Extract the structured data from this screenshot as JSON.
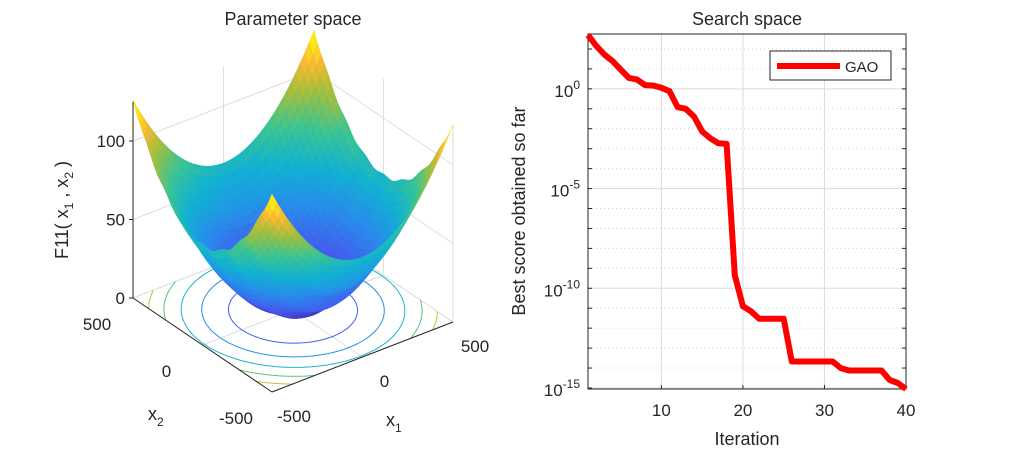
{
  "chart_data": [
    {
      "type": "surface",
      "title": "Parameter space",
      "function_name": "F11",
      "zlabel": "F11( x_1 , x_2 )",
      "xlabel": "x_1",
      "ylabel": "x_2",
      "x_range": [
        -500,
        500
      ],
      "y_range": [
        -500,
        500
      ],
      "z_range": [
        0,
        125
      ],
      "x_ticks": [
        "-500",
        "0",
        "500"
      ],
      "y_ticks": [
        "-500",
        "0",
        "500"
      ],
      "z_ticks": [
        "0",
        "50",
        "100"
      ],
      "x_tick_values": [
        -500,
        0,
        500
      ],
      "y_tick_values": [
        -500,
        0,
        500
      ],
      "z_tick_values": [
        0,
        50,
        100
      ],
      "contour_levels": [
        20,
        40,
        60,
        80,
        100
      ],
      "colormap": "parula",
      "grid": true
    },
    {
      "type": "line",
      "title": "Search space",
      "xlabel": "Iteration",
      "ylabel": "Best score obtained so far",
      "yscale": "log",
      "xlim": [
        1,
        40
      ],
      "ylim_log10": [
        -15.05,
        2.75
      ],
      "x_ticks": [
        "10",
        "20",
        "30",
        "40"
      ],
      "x_tick_values": [
        10,
        20,
        30,
        40
      ],
      "y_ticks": [
        {
          "base": "10",
          "exp": "0",
          "value_log10": 0
        },
        {
          "base": "10",
          "exp": "-5",
          "value_log10": -5
        },
        {
          "base": "10",
          "exp": "-10",
          "value_log10": -10
        },
        {
          "base": "10",
          "exp": "-15",
          "value_log10": -15
        }
      ],
      "grid": true,
      "legend": {
        "position": "top-right",
        "entries": [
          "GAO"
        ]
      },
      "series": [
        {
          "name": "GAO",
          "color": "#ff0000",
          "x": [
            1,
            2,
            3,
            4,
            5,
            6,
            7,
            8,
            9,
            10,
            11,
            12,
            13,
            14,
            15,
            16,
            17,
            18,
            19,
            20,
            21,
            22,
            23,
            24,
            25,
            26,
            27,
            28,
            29,
            30,
            31,
            32,
            33,
            34,
            35,
            36,
            37,
            38,
            39,
            40
          ],
          "log10_values": [
            2.7,
            2.16,
            1.72,
            1.39,
            0.97,
            0.55,
            0.47,
            0.19,
            0.17,
            0.05,
            -0.12,
            -0.92,
            -1.0,
            -1.39,
            -2.14,
            -2.48,
            -2.73,
            -2.76,
            -9.35,
            -10.9,
            -11.16,
            -11.53,
            -11.53,
            -11.53,
            -11.53,
            -13.67,
            -13.67,
            -13.67,
            -13.67,
            -13.67,
            -13.67,
            -14.0,
            -14.12,
            -14.12,
            -14.12,
            -14.12,
            -14.12,
            -14.6,
            -14.75,
            -15.05
          ]
        }
      ]
    }
  ]
}
